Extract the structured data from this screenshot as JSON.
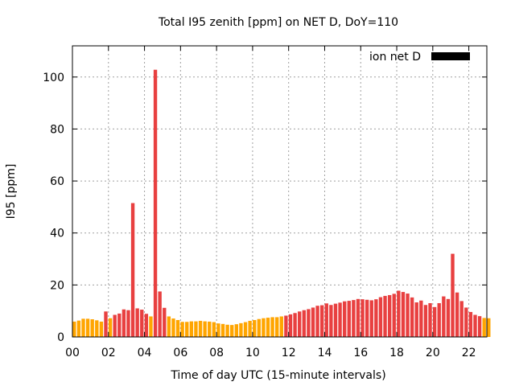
{
  "chart_data": {
    "type": "bar",
    "title": "Total I95 zenith [ppm] on NET D, DoY=110",
    "xlabel": "Time of day UTC (15-minute intervals)",
    "ylabel": "I95 [ppm]",
    "x_tick_labels": [
      "00",
      "02",
      "04",
      "06",
      "08",
      "10",
      "12",
      "14",
      "16",
      "18",
      "20",
      "22"
    ],
    "x_tick_hours": [
      0,
      2,
      4,
      6,
      8,
      10,
      12,
      14,
      16,
      18,
      20,
      22
    ],
    "x_range_hours": [
      0,
      23
    ],
    "y_ticks": [
      0,
      20,
      40,
      60,
      80,
      100
    ],
    "ylim": [
      0,
      112
    ],
    "grid": true,
    "legend": {
      "label": "ion net D",
      "swatch_color": "#000000",
      "position": "top-right"
    },
    "bar_interval_hours": 0.25,
    "colors": {
      "low": "#ffa500",
      "high": "#e84040"
    },
    "series": [
      {
        "name": "ion net D",
        "values": [
          5.9,
          6.3,
          7.0,
          7.0,
          6.8,
          6.4,
          5.9,
          9.8,
          7.2,
          8.5,
          9.0,
          10.6,
          10.3,
          51.5,
          11.0,
          10.5,
          8.9,
          7.9,
          102.8,
          17.5,
          11.2,
          7.9,
          7.1,
          6.5,
          5.8,
          5.8,
          6.0,
          6.0,
          6.2,
          6.0,
          5.9,
          5.7,
          5.2,
          5.0,
          4.7,
          4.6,
          4.9,
          5.3,
          5.7,
          6.2,
          6.5,
          6.9,
          7.2,
          7.4,
          7.6,
          7.6,
          7.9,
          8.2,
          8.7,
          9.2,
          9.8,
          10.3,
          10.7,
          11.3,
          12.0,
          12.2,
          12.9,
          12.3,
          12.8,
          13.2,
          13.7,
          13.9,
          14.2,
          14.6,
          14.5,
          14.3,
          14.1,
          14.5,
          15.3,
          15.8,
          16.1,
          16.6,
          17.8,
          17.3,
          16.7,
          15.2,
          13.3,
          14.0,
          12.3,
          13.0,
          11.5,
          13.0,
          15.6,
          14.6,
          32.0,
          17.1,
          13.8,
          11.3,
          9.6,
          8.5,
          8.0,
          7.3,
          7.2
        ],
        "category": [
          "low",
          "low",
          "low",
          "low",
          "low",
          "low",
          "low",
          "high",
          "low",
          "high",
          "high",
          "high",
          "high",
          "high",
          "high",
          "high",
          "high",
          "low",
          "high",
          "high",
          "high",
          "low",
          "low",
          "low",
          "low",
          "low",
          "low",
          "low",
          "low",
          "low",
          "low",
          "low",
          "low",
          "low",
          "low",
          "low",
          "low",
          "low",
          "low",
          "low",
          "low",
          "low",
          "low",
          "low",
          "low",
          "low",
          "low",
          "high",
          "high",
          "high",
          "high",
          "high",
          "high",
          "high",
          "high",
          "high",
          "high",
          "high",
          "high",
          "high",
          "high",
          "high",
          "high",
          "high",
          "high",
          "high",
          "high",
          "high",
          "high",
          "high",
          "high",
          "high",
          "high",
          "high",
          "high",
          "high",
          "high",
          "high",
          "high",
          "high",
          "high",
          "high",
          "high",
          "high",
          "high",
          "high",
          "high",
          "high",
          "high",
          "high",
          "high",
          "low",
          "low"
        ]
      }
    ]
  }
}
